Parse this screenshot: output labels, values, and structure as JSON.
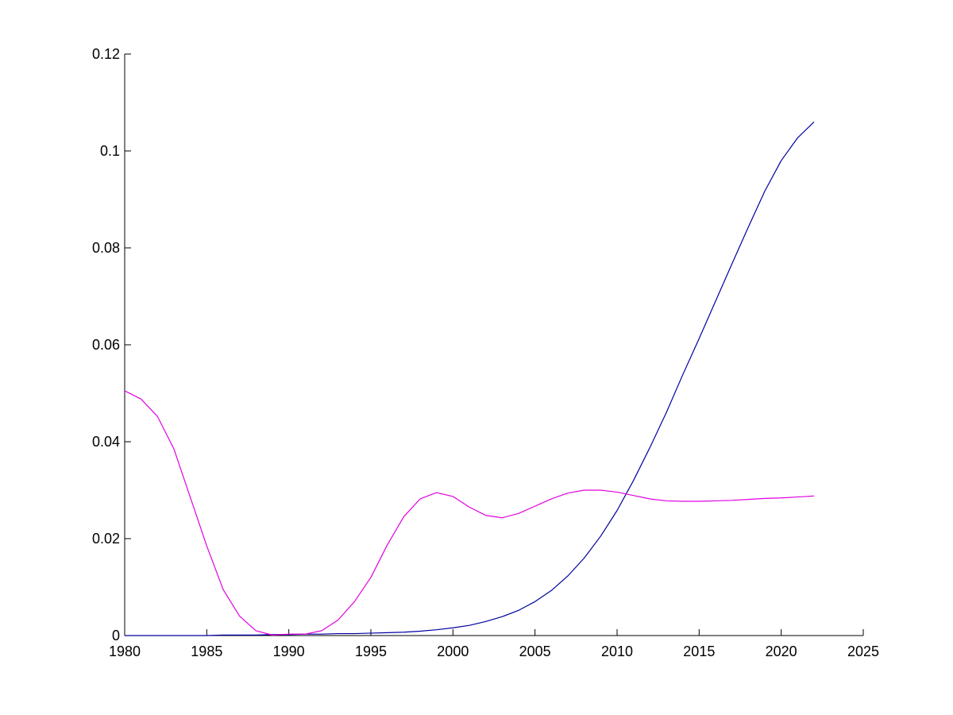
{
  "chart_data": {
    "type": "line",
    "title": "",
    "xlabel": "",
    "ylabel": "",
    "xlim": [
      1980,
      2025
    ],
    "ylim": [
      0,
      0.12
    ],
    "grid": false,
    "xticks": [
      {
        "value": 1980,
        "label": "1980"
      },
      {
        "value": 1985,
        "label": "1985"
      },
      {
        "value": 1990,
        "label": "1990"
      },
      {
        "value": 1995,
        "label": "1995"
      },
      {
        "value": 2000,
        "label": "2000"
      },
      {
        "value": 2005,
        "label": "2005"
      },
      {
        "value": 2010,
        "label": "2010"
      },
      {
        "value": 2015,
        "label": "2015"
      },
      {
        "value": 2020,
        "label": "2020"
      },
      {
        "value": 2025,
        "label": "2025"
      }
    ],
    "yticks": [
      {
        "value": 0,
        "label": "0"
      },
      {
        "value": 0.02,
        "label": "0.02"
      },
      {
        "value": 0.04,
        "label": "0.04"
      },
      {
        "value": 0.06,
        "label": "0.06"
      },
      {
        "value": 0.08,
        "label": "0.08"
      },
      {
        "value": 0.1,
        "label": "0.1"
      },
      {
        "value": 0.12,
        "label": "0.12"
      }
    ],
    "x": [
      1980,
      1981,
      1982,
      1983,
      1984,
      1985,
      1986,
      1987,
      1988,
      1989,
      1990,
      1991,
      1992,
      1993,
      1994,
      1995,
      1996,
      1997,
      1998,
      1999,
      2000,
      2001,
      2002,
      2003,
      2004,
      2005,
      2006,
      2007,
      2008,
      2009,
      2010,
      2011,
      2012,
      2013,
      2014,
      2015,
      2016,
      2017,
      2018,
      2019,
      2020,
      2021,
      2022
    ],
    "series": [
      {
        "color": "#0000a0",
        "values": [
          0,
          0,
          0,
          0,
          0,
          0,
          0.0001,
          0.0001,
          0.0001,
          0.0002,
          0.0002,
          0.0003,
          0.0003,
          0.0004,
          0.0004,
          0.0005,
          0.0006,
          0.0007,
          0.0009,
          0.0012,
          0.0016,
          0.0021,
          0.0029,
          0.0039,
          0.0052,
          0.007,
          0.0093,
          0.0123,
          0.016,
          0.0205,
          0.0258,
          0.032,
          0.0388,
          0.046,
          0.0538,
          0.0613,
          0.069,
          0.0767,
          0.0843,
          0.0917,
          0.098,
          0.1027,
          0.106
        ]
      },
      {
        "color": "#e000e0",
        "values": [
          0.0505,
          0.0488,
          0.0452,
          0.0385,
          0.0285,
          0.0185,
          0.0095,
          0.004,
          0.001,
          0.0001,
          0.0003,
          0.0003,
          0.001,
          0.0032,
          0.007,
          0.012,
          0.0187,
          0.0245,
          0.0282,
          0.0295,
          0.0287,
          0.0265,
          0.0248,
          0.0243,
          0.0252,
          0.0267,
          0.0282,
          0.0294,
          0.03,
          0.03,
          0.0296,
          0.0289,
          0.0282,
          0.0278,
          0.0277,
          0.0277,
          0.0278,
          0.0279,
          0.0281,
          0.0283,
          0.0284,
          0.0286,
          0.0288
        ]
      }
    ]
  }
}
